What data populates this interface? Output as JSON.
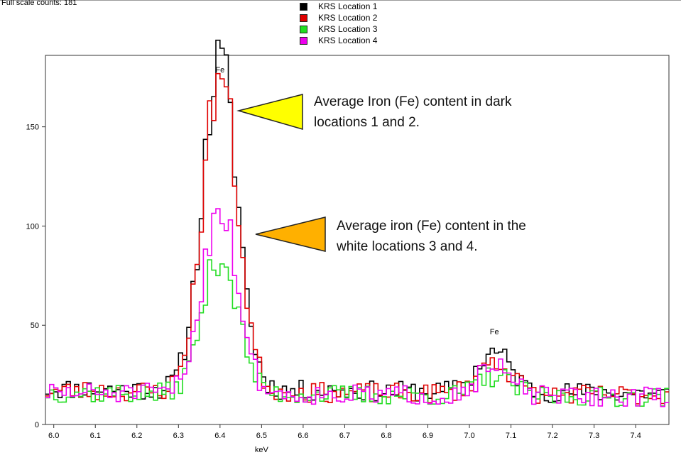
{
  "header": {
    "full_scale_text": "Full scale counts: 181"
  },
  "chart_data": {
    "type": "line",
    "step": true,
    "xlabel": "keV",
    "ylabel": "",
    "xlim": [
      5.98,
      7.48
    ],
    "ylim": [
      0,
      186
    ],
    "x_ticks": [
      "6.0",
      "6.1",
      "6.2",
      "6.3",
      "6.4",
      "6.5",
      "6.6",
      "6.7",
      "6.8",
      "6.9",
      "7.0",
      "7.1",
      "7.2",
      "7.3",
      "7.4"
    ],
    "y_ticks": [
      "0",
      "50",
      "100",
      "150"
    ],
    "grid": false,
    "legend_position": "top-center",
    "peak_labels": [
      {
        "text": "Fe",
        "x": 6.4,
        "y": 176
      },
      {
        "text": "Fe",
        "x": 7.06,
        "y": 44
      }
    ],
    "series": [
      {
        "name": "KRS Location 1",
        "color": "#000000",
        "base": 18,
        "peak1": 165,
        "peak2": 20,
        "seed": 11
      },
      {
        "name": "KRS Location 2",
        "color": "#e00000",
        "base": 17,
        "peak1": 160,
        "peak2": 17,
        "seed": 23
      },
      {
        "name": "KRS Location 3",
        "color": "#22dd22",
        "base": 16,
        "peak1": 70,
        "peak2": 10,
        "seed": 37
      },
      {
        "name": "KRS Location 4",
        "color": "#ee00ee",
        "base": 16,
        "peak1": 95,
        "peak2": 14,
        "seed": 51
      }
    ],
    "annotations": [
      {
        "line1": "Average Iron (Fe) content in dark",
        "line2": "locations 1 and 2.",
        "color": "#ffff00"
      },
      {
        "line1": "Average iron (Fe) content in the",
        "line2": "white locations 3 and 4.",
        "color": "#ffb000"
      }
    ]
  }
}
